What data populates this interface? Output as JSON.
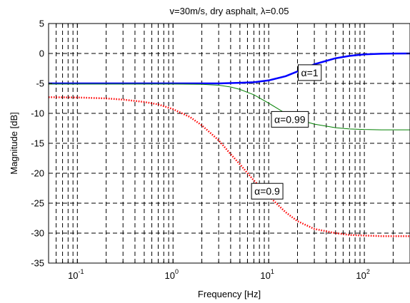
{
  "chart_data": {
    "type": "line",
    "title": "v=30m/s, dry asphalt, λ=0.05",
    "xlabel": "Frequency [Hz]",
    "ylabel": "Magnitude [dB]",
    "xscale": "log",
    "xlim": [
      0.05,
      300
    ],
    "ylim": [
      -35,
      5
    ],
    "grid": true,
    "x_ticks": [
      {
        "value": 0.1,
        "base": "10",
        "exp": "-1"
      },
      {
        "value": 1,
        "base": "10",
        "exp": "0"
      },
      {
        "value": 10,
        "base": "10",
        "exp": "1"
      },
      {
        "value": 100,
        "base": "10",
        "exp": "2"
      }
    ],
    "y_ticks": [
      5,
      0,
      -5,
      -10,
      -15,
      -20,
      -25,
      -30,
      -35
    ],
    "series": [
      {
        "color": "#0000ff",
        "style": "solid",
        "x": [
          0.05,
          0.3,
          1,
          2,
          3,
          5,
          7,
          10,
          15,
          20,
          30,
          50,
          70,
          100,
          150,
          200,
          300
        ],
        "y": [
          -5,
          -5,
          -5,
          -5,
          -5,
          -4.9,
          -4.8,
          -4.5,
          -3.8,
          -3.0,
          -1.8,
          -0.8,
          -0.4,
          -0.15,
          -0.05,
          -0.02,
          0
        ]
      },
      {
        "color": "#008000",
        "style": "solid",
        "x": [
          0.05,
          0.3,
          1,
          2,
          3,
          4,
          5,
          7,
          10,
          15,
          20,
          30,
          50,
          70,
          100,
          150,
          200,
          300
        ],
        "y": [
          -5.1,
          -5.1,
          -5.1,
          -5.15,
          -5.3,
          -5.6,
          -6.0,
          -6.9,
          -8.3,
          -10.0,
          -11.0,
          -11.8,
          -12.4,
          -12.6,
          -12.7,
          -12.75,
          -12.75,
          -12.75
        ]
      },
      {
        "color": "#ff0000",
        "style": "dotted",
        "x": [
          0.05,
          0.1,
          0.2,
          0.3,
          0.5,
          0.7,
          1,
          1.5,
          2,
          3,
          4,
          5,
          7,
          10,
          15,
          20,
          30,
          50,
          70,
          100,
          150,
          200,
          300
        ],
        "y": [
          -7.3,
          -7.35,
          -7.5,
          -7.7,
          -8.1,
          -8.5,
          -9.3,
          -10.6,
          -12.0,
          -14.5,
          -16.8,
          -18.5,
          -21.2,
          -23.8,
          -26.5,
          -28.0,
          -29.3,
          -30.0,
          -30.3,
          -30.4,
          -30.5,
          -30.5,
          -30.5
        ]
      }
    ],
    "annotations": [
      {
        "symbol": "α",
        "text": "=1",
        "x": 20,
        "y": -3.2
      },
      {
        "symbol": "α",
        "text": "=0.99",
        "x": 10.5,
        "y": -11.0
      },
      {
        "symbol": "α",
        "text": "=0.9",
        "x": 6.5,
        "y": -23.0
      }
    ]
  }
}
